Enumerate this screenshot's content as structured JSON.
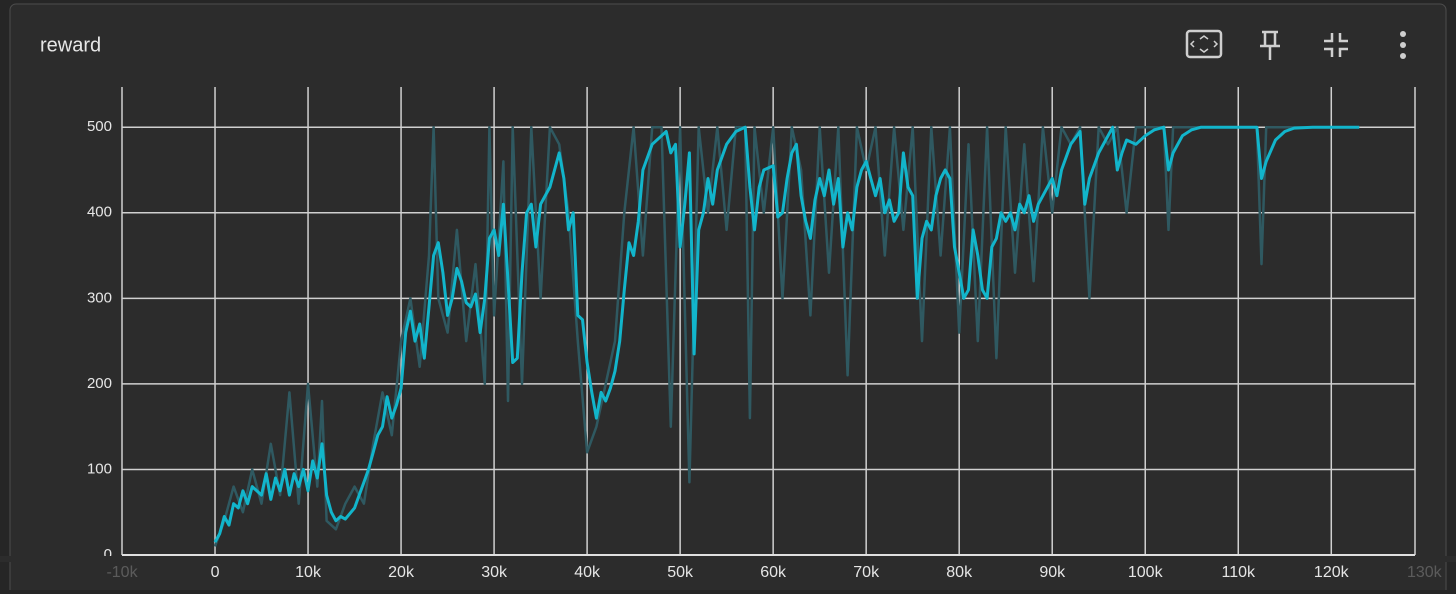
{
  "chart_data": {
    "type": "line",
    "title": "reward",
    "xlim": [
      -10000,
      129000
    ],
    "ylim": [
      0,
      547
    ],
    "xticks": [
      {
        "value": -10000,
        "label": "-10k"
      },
      0,
      {
        "value": 10000,
        "label": "10k"
      },
      {
        "value": 20000,
        "label": "20k"
      },
      {
        "value": 30000,
        "label": "30k"
      },
      {
        "value": 40000,
        "label": "40k"
      },
      {
        "value": 50000,
        "label": "50k"
      },
      {
        "value": 60000,
        "label": "60k"
      },
      {
        "value": 70000,
        "label": "70k"
      },
      {
        "value": 80000,
        "label": "80k"
      },
      {
        "value": 90000,
        "label": "90k"
      },
      {
        "value": 100000,
        "label": "100k"
      },
      {
        "value": 110000,
        "label": "110k"
      },
      {
        "value": 120000,
        "label": "120k"
      },
      {
        "value": 130000,
        "label": "130k"
      }
    ],
    "yticks": [
      0,
      100,
      200,
      300,
      400,
      500
    ],
    "grid": true,
    "series": [
      {
        "color": "#2f5961",
        "x": [
          0,
          1000,
          2000,
          3000,
          4000,
          5000,
          6000,
          7000,
          8000,
          9000,
          10000,
          11000,
          11500,
          12000,
          13000,
          14000,
          15000,
          16000,
          17000,
          18000,
          19000,
          20000,
          21000,
          22000,
          23000,
          23500,
          24000,
          25000,
          26000,
          27000,
          28000,
          29000,
          29500,
          30000,
          31000,
          31500,
          32000,
          33000,
          34000,
          35000,
          36000,
          37000,
          38000,
          39000,
          40000,
          41000,
          42000,
          43000,
          44000,
          45000,
          46000,
          47000,
          48000,
          49000,
          50000,
          51000,
          52000,
          53000,
          54000,
          55000,
          56000,
          57000,
          57500,
          58000,
          59000,
          60000,
          61000,
          62000,
          63000,
          64000,
          65000,
          66000,
          67000,
          68000,
          69000,
          70000,
          71000,
          72000,
          73000,
          74000,
          75000,
          76000,
          77000,
          78000,
          79000,
          80000,
          81000,
          82000,
          83000,
          84000,
          85000,
          86000,
          87000,
          88000,
          89000,
          90000,
          91000,
          92000,
          93000,
          94000,
          95000,
          96000,
          97000,
          98000,
          99000,
          100000,
          102000,
          102500,
          103000,
          112000,
          112500,
          113000,
          123000
        ],
        "values": [
          10,
          40,
          80,
          50,
          100,
          60,
          130,
          70,
          190,
          60,
          200,
          80,
          180,
          40,
          30,
          60,
          80,
          60,
          130,
          190,
          140,
          250,
          300,
          220,
          350,
          500,
          300,
          260,
          380,
          250,
          340,
          200,
          500,
          280,
          460,
          180,
          500,
          200,
          500,
          300,
          500,
          480,
          400,
          250,
          120,
          150,
          200,
          250,
          400,
          500,
          350,
          500,
          500,
          150,
          500,
          85,
          500,
          400,
          500,
          380,
          500,
          500,
          160,
          500,
          400,
          500,
          300,
          500,
          450,
          280,
          500,
          330,
          500,
          210,
          500,
          450,
          500,
          350,
          500,
          380,
          500,
          250,
          500,
          350,
          500,
          260,
          480,
          250,
          500,
          230,
          500,
          330,
          480,
          320,
          500,
          400,
          500,
          480,
          500,
          300,
          500,
          480,
          500,
          400,
          500,
          500,
          500,
          380,
          500,
          500,
          340,
          500,
          500
        ]
      },
      {
        "color": "#12b5cb",
        "x": [
          0,
          500,
          1000,
          1500,
          2000,
          2500,
          3000,
          3500,
          4000,
          5000,
          5500,
          6000,
          6500,
          7000,
          7500,
          8000,
          8500,
          9000,
          9500,
          10000,
          10500,
          11000,
          11500,
          12000,
          12500,
          13000,
          13500,
          14000,
          15000,
          15500,
          16000,
          16500,
          17000,
          17500,
          18000,
          18500,
          19000,
          19500,
          20000,
          20500,
          21000,
          21500,
          22000,
          22500,
          23000,
          23500,
          24000,
          24500,
          25000,
          25500,
          26000,
          26500,
          27000,
          27500,
          28000,
          28500,
          29000,
          29500,
          30000,
          30500,
          31000,
          31500,
          32000,
          32500,
          33000,
          33500,
          34000,
          34500,
          35000,
          36000,
          37000,
          37500,
          38000,
          38500,
          39000,
          39500,
          40000,
          40500,
          41000,
          41500,
          42000,
          42500,
          43000,
          43500,
          44000,
          44500,
          45000,
          45500,
          46000,
          47000,
          48000,
          48500,
          49000,
          49500,
          50000,
          50500,
          51000,
          51500,
          52000,
          52500,
          53000,
          53500,
          54000,
          55000,
          56000,
          57000,
          57500,
          58000,
          58500,
          59000,
          60000,
          60500,
          61000,
          61500,
          62000,
          62500,
          63000,
          63500,
          64000,
          64500,
          65000,
          65500,
          66000,
          66500,
          67000,
          67500,
          68000,
          68500,
          69000,
          69500,
          70000,
          70500,
          71000,
          71500,
          72000,
          72500,
          73000,
          73500,
          74000,
          74500,
          75000,
          75500,
          76000,
          76500,
          77000,
          77500,
          78000,
          78500,
          79000,
          79500,
          80000,
          80500,
          81000,
          81500,
          82000,
          82500,
          83000,
          83500,
          84000,
          84500,
          85000,
          85500,
          86000,
          86500,
          87000,
          87500,
          88000,
          88500,
          89000,
          90000,
          90500,
          91000,
          92000,
          93000,
          93500,
          94000,
          95000,
          96000,
          96500,
          97000,
          97500,
          98000,
          99000,
          100000,
          101000,
          102000,
          102500,
          103000,
          104000,
          105000,
          106000,
          112000,
          112500,
          113000,
          114000,
          115000,
          116000,
          118000,
          123000
        ],
        "values": [
          15,
          25,
          45,
          35,
          60,
          55,
          75,
          60,
          80,
          70,
          95,
          65,
          90,
          75,
          100,
          70,
          95,
          80,
          100,
          75,
          110,
          90,
          130,
          70,
          50,
          40,
          45,
          42,
          55,
          70,
          85,
          100,
          120,
          140,
          150,
          185,
          160,
          175,
          195,
          260,
          285,
          250,
          270,
          230,
          290,
          350,
          365,
          330,
          280,
          300,
          335,
          320,
          295,
          290,
          305,
          260,
          300,
          370,
          380,
          350,
          410,
          320,
          225,
          230,
          330,
          400,
          410,
          360,
          410,
          430,
          470,
          440,
          380,
          400,
          280,
          275,
          225,
          190,
          160,
          190,
          180,
          195,
          215,
          250,
          310,
          365,
          350,
          390,
          450,
          480,
          490,
          495,
          470,
          480,
          360,
          410,
          470,
          235,
          380,
          400,
          440,
          410,
          450,
          480,
          495,
          500,
          430,
          380,
          430,
          450,
          455,
          395,
          400,
          440,
          470,
          480,
          420,
          390,
          370,
          415,
          440,
          420,
          450,
          410,
          440,
          360,
          400,
          380,
          430,
          450,
          460,
          440,
          420,
          440,
          400,
          415,
          390,
          400,
          470,
          430,
          420,
          300,
          370,
          390,
          380,
          420,
          440,
          450,
          440,
          360,
          330,
          300,
          310,
          380,
          350,
          310,
          300,
          360,
          370,
          400,
          390,
          400,
          380,
          410,
          400,
          420,
          390,
          410,
          420,
          440,
          420,
          450,
          480,
          495,
          410,
          440,
          470,
          490,
          500,
          450,
          470,
          485,
          480,
          490,
          497,
          500,
          450,
          470,
          490,
          497,
          500,
          500,
          440,
          460,
          485,
          495,
          499,
          500,
          500
        ]
      }
    ]
  }
}
